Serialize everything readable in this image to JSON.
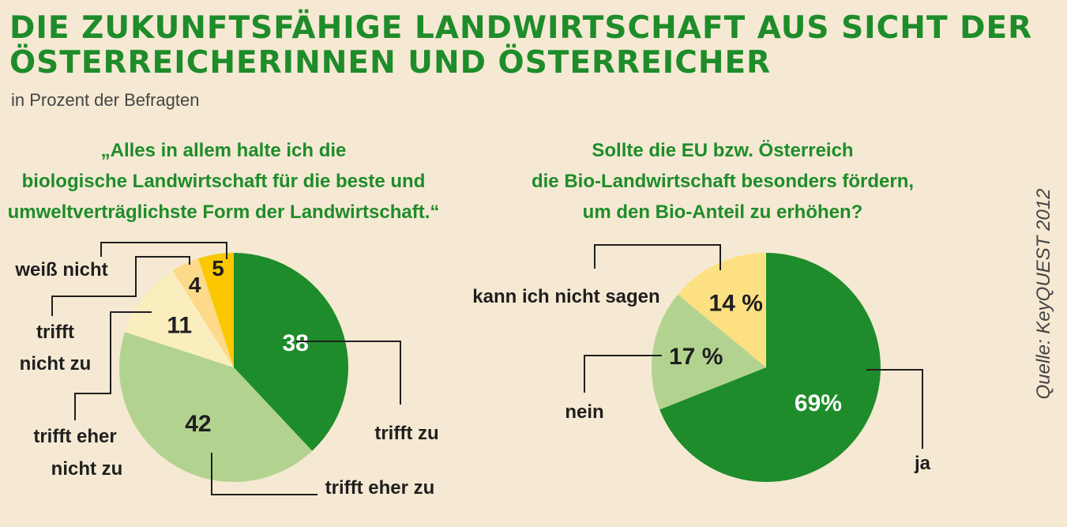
{
  "header": {
    "title_line1": "DIE ZUKUNFTSFÄHIGE LANDWIRTSCHAFT AUS SICHT DER",
    "title_line2": "ÖSTERREICHERINNEN UND ÖSTERREICHER",
    "subtitle": "in Prozent der Befragten"
  },
  "source": "Quelle: KeyQUEST 2012",
  "chart_data": [
    {
      "type": "pie",
      "title_lines": [
        "„Alles in allem halte ich die",
        "biologische Landwirtschaft  für die beste und",
        "umweltverträglichste Form der Landwirtschaft.“"
      ],
      "slices": [
        {
          "label": "trifft zu",
          "label_lines": [
            "trifft zu"
          ],
          "value": 38,
          "value_label": "38",
          "color": "#1e8c2a"
        },
        {
          "label": "trifft eher zu",
          "label_lines": [
            "trifft eher zu"
          ],
          "value": 42,
          "value_label": "42",
          "color": "#b2d38f"
        },
        {
          "label": "trifft eher nicht zu",
          "label_lines": [
            "trifft eher",
            "nicht zu"
          ],
          "value": 11,
          "value_label": "11",
          "color": "#fbeebe"
        },
        {
          "label": "trifft nicht zu",
          "label_lines": [
            "trifft",
            "nicht zu"
          ],
          "value": 4,
          "value_label": "4",
          "color": "#fdd98a"
        },
        {
          "label": "weiß nicht",
          "label_lines": [
            "weiß nicht"
          ],
          "value": 5,
          "value_label": "5",
          "color": "#fbc800"
        }
      ]
    },
    {
      "type": "pie",
      "title_lines": [
        "Sollte die EU bzw. Österreich",
        "die Bio-Landwirtschaft besonders fördern,",
        "um den Bio-Anteil zu erhöhen?"
      ],
      "slices": [
        {
          "label": "ja",
          "label_lines": [
            "ja"
          ],
          "value": 69,
          "value_label": "69%",
          "color": "#1e8c2a"
        },
        {
          "label": "nein",
          "label_lines": [
            "nein"
          ],
          "value": 17,
          "value_label": "17 %",
          "color": "#b2d38f"
        },
        {
          "label": "kann ich nicht sagen",
          "label_lines": [
            "kann ich nicht sagen"
          ],
          "value": 14,
          "value_label": "14 %",
          "color": "#fde081"
        }
      ]
    }
  ]
}
